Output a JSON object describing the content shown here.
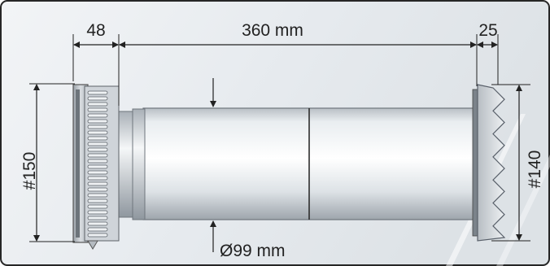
{
  "dimensions": {
    "grille_depth": "48",
    "tube_length": "360 mm",
    "outer_depth": "25",
    "grille_height": "#150",
    "outer_height": "#140",
    "tube_diameter": "Ø99 mm"
  },
  "colors": {
    "background": "#e6ebef",
    "border": "#262626",
    "tube": "#dfe3e7",
    "grille": "#c8cdd2",
    "dimension_line": "#222222"
  }
}
